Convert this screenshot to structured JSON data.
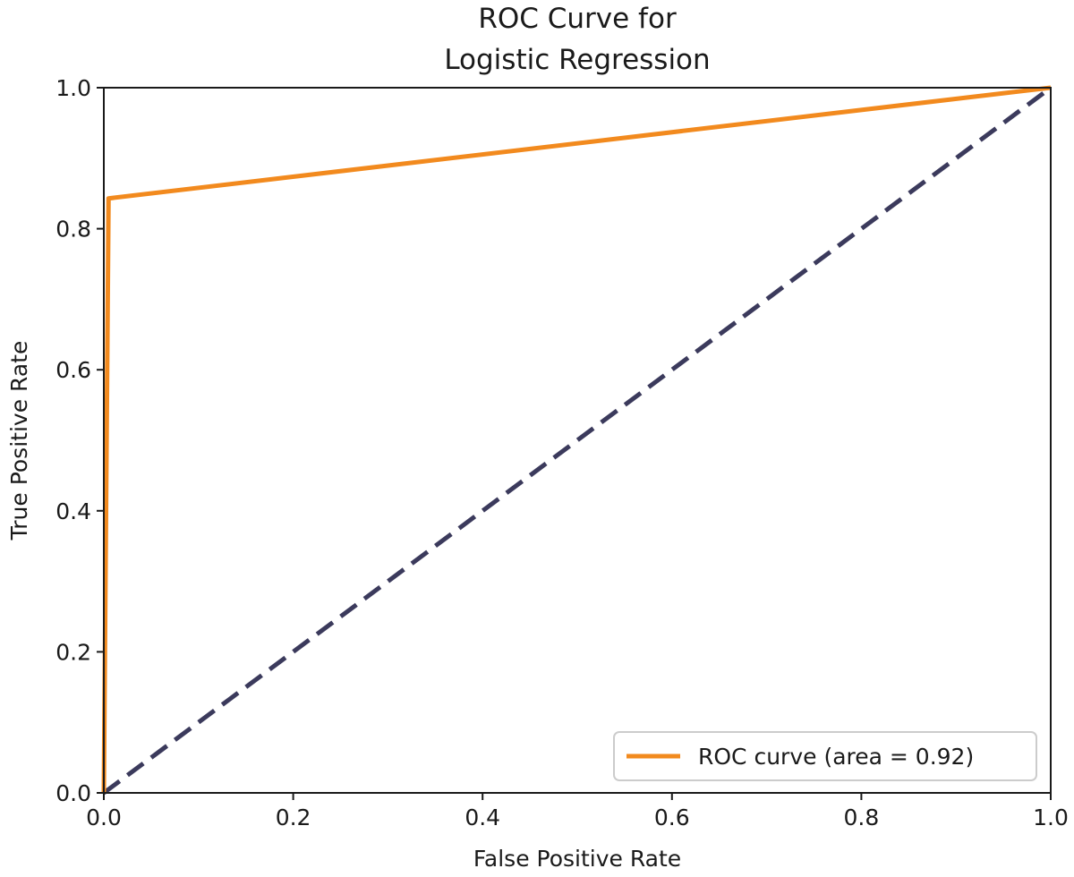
{
  "chart_data": {
    "type": "line",
    "title": [
      "ROC Curve for",
      "Logistic Regression"
    ],
    "xlabel": "False Positive Rate",
    "ylabel": "True Positive Rate",
    "xlim": [
      0.0,
      1.0
    ],
    "ylim": [
      0.0,
      1.0
    ],
    "xticks": [
      0.0,
      0.2,
      0.4,
      0.6,
      0.8,
      1.0
    ],
    "yticks": [
      0.0,
      0.2,
      0.4,
      0.6,
      0.8,
      1.0
    ],
    "xtick_labels": [
      "0.0",
      "0.2",
      "0.4",
      "0.6",
      "0.8",
      "1.0"
    ],
    "ytick_labels": [
      "0.0",
      "0.2",
      "0.4",
      "0.6",
      "0.8",
      "1.0"
    ],
    "grid": false,
    "legend_position": "lower-right",
    "series": [
      {
        "name": "ROC curve (area = 0.92)",
        "color": "#f28a1e",
        "style": "solid",
        "x": [
          0.0,
          0.005,
          1.0
        ],
        "y": [
          0.0,
          0.843,
          1.0
        ]
      },
      {
        "color": "#3b3a5c",
        "style": "dashed",
        "x": [
          0.0,
          1.0
        ],
        "y": [
          0.0,
          1.0
        ]
      }
    ]
  }
}
